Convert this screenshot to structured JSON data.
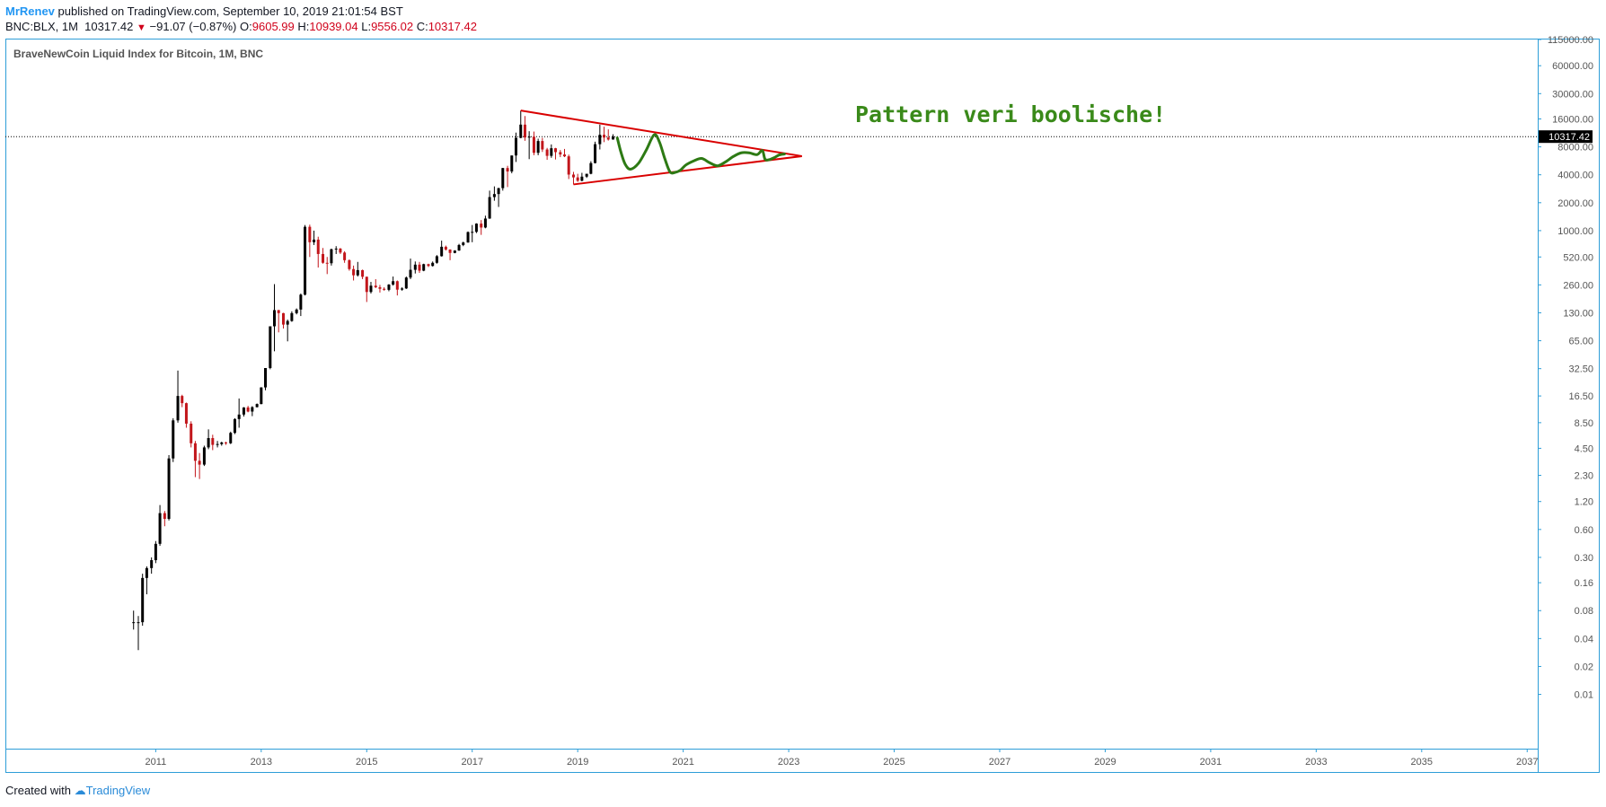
{
  "header": {
    "author": "MrRenev",
    "published_text": "published on TradingView.com, September 10, 2019 21:01:54 BST",
    "symbol": "BNC:BLX, 1M",
    "last_price": "10317.42",
    "change_arrow": "▼",
    "change": "−91.07 (−0.87%)",
    "o_label": "O:",
    "o_value": "9605.99",
    "h_label": "H:",
    "h_value": "10939.04",
    "l_label": "L:",
    "l_value": "9556.02",
    "c_label": "C:",
    "c_value": "10317.42"
  },
  "footer": {
    "created_with": "Created with",
    "brand": "TradingView",
    "brand_icon": "tradingview-cloud-icon"
  },
  "chart_data": {
    "type": "candlestick",
    "title": "BraveNewCoin Liquid Index for Bitcoin, 1M, BNC",
    "annotation": "Pattern veri boolische!",
    "price_label": "10317.42",
    "y_scale": "log",
    "y_ticks": [
      "115000.00",
      "60000.00",
      "30000.00",
      "16000.00",
      "8000.00",
      "4000.00",
      "2000.00",
      "1000.00",
      "520.00",
      "260.00",
      "130.00",
      "65.00",
      "32.50",
      "16.50",
      "8.50",
      "4.50",
      "2.30",
      "1.20",
      "0.60",
      "0.30",
      "0.16",
      "0.08",
      "0.04",
      "0.02",
      "0.01"
    ],
    "x_ticks": [
      "2011",
      "2013",
      "2015",
      "2017",
      "2019",
      "2021",
      "2023",
      "2025",
      "2027",
      "2029",
      "2031",
      "2033",
      "2035",
      "2037"
    ],
    "colors": {
      "up": "#000000",
      "down": "#c2161b",
      "triangle": "#d90000",
      "wave": "#2d7a14",
      "annotation": "#3a8a1a",
      "axis": "#2e9ed8"
    },
    "xlim": [
      2008.15,
      2037.2
    ],
    "ylim": [
      0.0026,
      115000
    ],
    "candles": [
      [
        2010.58,
        0.06,
        0.08,
        0.05,
        0.06
      ],
      [
        2010.67,
        0.06,
        0.07,
        0.03,
        0.06
      ],
      [
        2010.75,
        0.06,
        0.2,
        0.055,
        0.18
      ],
      [
        2010.83,
        0.18,
        0.24,
        0.12,
        0.23
      ],
      [
        2010.92,
        0.23,
        0.3,
        0.2,
        0.28
      ],
      [
        2011.0,
        0.28,
        0.45,
        0.26,
        0.42
      ],
      [
        2011.08,
        0.42,
        1.1,
        0.4,
        0.9
      ],
      [
        2011.17,
        0.9,
        0.95,
        0.65,
        0.78
      ],
      [
        2011.25,
        0.78,
        3.8,
        0.75,
        3.5
      ],
      [
        2011.33,
        3.5,
        9.5,
        3.2,
        9.0
      ],
      [
        2011.42,
        9.0,
        31,
        8.5,
        16.5
      ],
      [
        2011.5,
        16.5,
        17,
        12.5,
        13.8
      ],
      [
        2011.58,
        13.8,
        14,
        7.5,
        8.3
      ],
      [
        2011.67,
        8.3,
        8.8,
        4.6,
        5.1
      ],
      [
        2011.75,
        5.1,
        5.4,
        2.2,
        3.3
      ],
      [
        2011.83,
        3.3,
        4.0,
        2.1,
        3.0
      ],
      [
        2011.92,
        3.0,
        4.8,
        2.9,
        4.6
      ],
      [
        2012.0,
        4.6,
        7.2,
        4.4,
        5.8
      ],
      [
        2012.08,
        5.8,
        6.3,
        4.3,
        4.9
      ],
      [
        2012.17,
        4.9,
        5.4,
        4.6,
        5.0
      ],
      [
        2012.25,
        5.0,
        5.3,
        4.8,
        5.2
      ],
      [
        2012.33,
        5.2,
        5.3,
        4.9,
        5.1
      ],
      [
        2012.42,
        5.1,
        6.8,
        5.0,
        6.6
      ],
      [
        2012.5,
        6.6,
        9.5,
        6.4,
        9.3
      ],
      [
        2012.58,
        9.3,
        15.5,
        7.5,
        10.4
      ],
      [
        2012.67,
        10.4,
        12.5,
        9.9,
        12.4
      ],
      [
        2012.75,
        12.4,
        12.9,
        11.0,
        11.2
      ],
      [
        2012.83,
        11.2,
        12.8,
        10.0,
        12.5
      ],
      [
        2012.92,
        12.5,
        13.7,
        12.4,
        13.5
      ],
      [
        2013.0,
        13.5,
        20.5,
        13.4,
        20.4
      ],
      [
        2013.08,
        20.4,
        33,
        19,
        33
      ],
      [
        2013.17,
        33,
        93,
        32,
        93
      ],
      [
        2013.25,
        93,
        265,
        50,
        139
      ],
      [
        2013.33,
        139,
        140,
        80,
        129
      ],
      [
        2013.42,
        129,
        130,
        88,
        97
      ],
      [
        2013.5,
        97,
        110,
        64,
        106
      ],
      [
        2013.58,
        106,
        135,
        104,
        129
      ],
      [
        2013.67,
        129,
        145,
        125,
        141
      ],
      [
        2013.75,
        141,
        210,
        120,
        204
      ],
      [
        2013.83,
        204,
        1150,
        200,
        1100
      ],
      [
        2013.92,
        1100,
        1160,
        520,
        750
      ],
      [
        2014.0,
        750,
        1000,
        700,
        800
      ],
      [
        2014.08,
        800,
        860,
        400,
        560
      ],
      [
        2014.17,
        560,
        650,
        440,
        450
      ],
      [
        2014.25,
        450,
        520,
        340,
        445
      ],
      [
        2014.33,
        445,
        640,
        420,
        630
      ],
      [
        2014.42,
        630,
        680,
        560,
        640
      ],
      [
        2014.5,
        640,
        650,
        560,
        580
      ],
      [
        2014.58,
        580,
        600,
        450,
        480
      ],
      [
        2014.67,
        480,
        490,
        370,
        385
      ],
      [
        2014.75,
        385,
        420,
        290,
        330
      ],
      [
        2014.83,
        330,
        460,
        320,
        375
      ],
      [
        2014.92,
        375,
        380,
        300,
        318
      ],
      [
        2015.0,
        318,
        320,
        170,
        218
      ],
      [
        2015.08,
        218,
        280,
        210,
        255
      ],
      [
        2015.17,
        255,
        300,
        240,
        245
      ],
      [
        2015.25,
        245,
        260,
        215,
        236
      ],
      [
        2015.33,
        236,
        245,
        225,
        230
      ],
      [
        2015.42,
        230,
        265,
        222,
        262
      ],
      [
        2015.5,
        262,
        320,
        255,
        285
      ],
      [
        2015.58,
        285,
        290,
        200,
        231
      ],
      [
        2015.67,
        231,
        245,
        225,
        238
      ],
      [
        2015.75,
        238,
        320,
        235,
        312
      ],
      [
        2015.83,
        312,
        500,
        300,
        378
      ],
      [
        2015.92,
        378,
        465,
        345,
        430
      ],
      [
        2016.0,
        430,
        460,
        350,
        370
      ],
      [
        2016.08,
        370,
        440,
        365,
        435
      ],
      [
        2016.17,
        435,
        440,
        405,
        416
      ],
      [
        2016.25,
        416,
        465,
        410,
        450
      ],
      [
        2016.33,
        450,
        545,
        440,
        530
      ],
      [
        2016.42,
        530,
        780,
        525,
        670
      ],
      [
        2016.5,
        670,
        690,
        610,
        625
      ],
      [
        2016.58,
        625,
        630,
        480,
        575
      ],
      [
        2016.67,
        575,
        615,
        570,
        610
      ],
      [
        2016.75,
        610,
        720,
        605,
        700
      ],
      [
        2016.83,
        700,
        760,
        680,
        745
      ],
      [
        2016.92,
        745,
        980,
        740,
        965
      ],
      [
        2017.0,
        965,
        1150,
        750,
        970
      ],
      [
        2017.08,
        970,
        1200,
        940,
        1190
      ],
      [
        2017.17,
        1190,
        1300,
        900,
        1080
      ],
      [
        2017.25,
        1080,
        1450,
        1060,
        1350
      ],
      [
        2017.33,
        1350,
        2700,
        1340,
        2300
      ],
      [
        2017.42,
        2300,
        3000,
        2100,
        2480
      ],
      [
        2017.5,
        2480,
        2900,
        1800,
        2870
      ],
      [
        2017.58,
        2870,
        4750,
        2700,
        4730
      ],
      [
        2017.67,
        4730,
        5000,
        2950,
        4340
      ],
      [
        2017.75,
        4340,
        6450,
        4150,
        6460
      ],
      [
        2017.83,
        6460,
        11400,
        5500,
        10000
      ],
      [
        2017.92,
        10000,
        19700,
        9900,
        13900
      ],
      [
        2018.0,
        13900,
        17200,
        9300,
        10100
      ],
      [
        2018.08,
        10100,
        11800,
        5900,
        10300
      ],
      [
        2018.17,
        10300,
        11700,
        6500,
        6900
      ],
      [
        2018.25,
        6900,
        9800,
        6500,
        9250
      ],
      [
        2018.33,
        9250,
        10000,
        7050,
        7500
      ],
      [
        2018.42,
        7500,
        7800,
        5800,
        6400
      ],
      [
        2018.5,
        6400,
        8500,
        6100,
        7730
      ],
      [
        2018.58,
        7730,
        7800,
        5850,
        7020
      ],
      [
        2018.67,
        7020,
        7400,
        6200,
        6620
      ],
      [
        2018.75,
        6620,
        7600,
        6200,
        6320
      ],
      [
        2018.83,
        6320,
        6600,
        3600,
        4020
      ],
      [
        2018.92,
        4020,
        4300,
        3150,
        3750
      ],
      [
        2019.0,
        3750,
        4100,
        3350,
        3450
      ],
      [
        2019.08,
        3450,
        4200,
        3400,
        3820
      ],
      [
        2019.17,
        3820,
        4100,
        3700,
        4100
      ],
      [
        2019.25,
        4100,
        5600,
        4050,
        5350
      ],
      [
        2019.33,
        5350,
        9100,
        5300,
        8550
      ],
      [
        2019.42,
        8550,
        13900,
        7500,
        10800
      ],
      [
        2019.5,
        10800,
        13200,
        9000,
        10080
      ],
      [
        2019.58,
        10080,
        12350,
        9350,
        9600
      ],
      [
        2019.67,
        9605.99,
        10939.04,
        9556.02,
        10317.42
      ]
    ],
    "triangle_lines": [
      {
        "x": [
          2017.92,
          2023.25
        ],
        "y": [
          19700,
          6350
        ]
      },
      {
        "x": [
          2018.92,
          2023.25
        ],
        "y": [
          3150,
          6350
        ]
      }
    ],
    "wave": {
      "x": [
        2019.75,
        2019.82,
        2019.9,
        2020.0,
        2020.15,
        2020.3,
        2020.45,
        2020.55,
        2020.65,
        2020.75,
        2020.85,
        2020.95,
        2021.05,
        2021.2,
        2021.35,
        2021.5,
        2021.65,
        2021.8,
        2021.95,
        2022.1,
        2022.25,
        2022.4,
        2022.5,
        2022.55,
        2022.62,
        2022.72,
        2022.82,
        2022.92
      ],
      "y": [
        10000,
        7000,
        5200,
        4600,
        5300,
        7400,
        10800,
        9000,
        6000,
        4300,
        4250,
        4500,
        5100,
        5650,
        6000,
        5400,
        5000,
        5500,
        6300,
        6900,
        6900,
        6600,
        7300,
        5900,
        5800,
        6100,
        6550,
        6700
      ]
    }
  }
}
